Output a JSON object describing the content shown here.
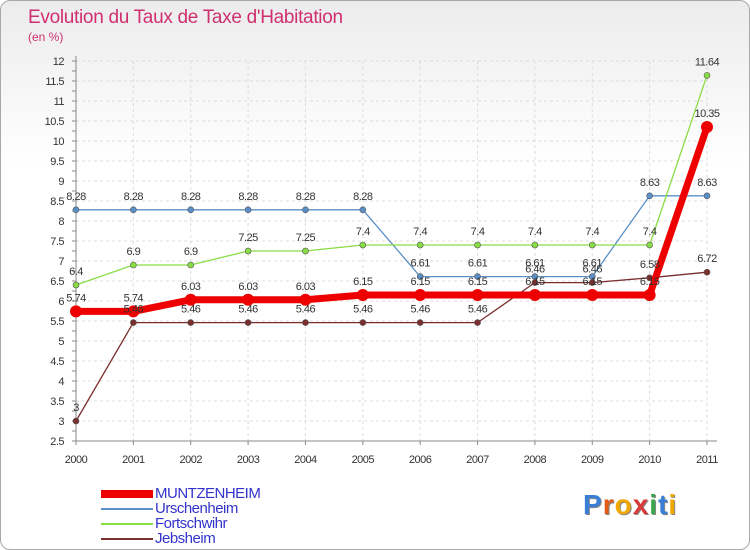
{
  "title": "Evolution du Taux de Taxe d'Habitation",
  "unit": "(en %)",
  "logo": "Proxiti",
  "chart_data": {
    "type": "line",
    "title": "Evolution du Taux de Taxe d'Habitation",
    "ylabel": "(en %)",
    "xlabel": "",
    "ylim": [
      2.5,
      12
    ],
    "y_ticks": [
      "2.5",
      "3",
      "3.5",
      "4",
      "4.5",
      "5",
      "5.5",
      "6",
      "6.5",
      "7",
      "7.5",
      "8",
      "8.5",
      "9",
      "9.5",
      "10",
      "10.5",
      "11",
      "11.5",
      "12"
    ],
    "categories": [
      "2000",
      "2001",
      "2002",
      "2003",
      "2004",
      "2005",
      "2006",
      "2007",
      "2008",
      "2009",
      "2010",
      "2011"
    ],
    "grid": true,
    "legend_position": "bottom-left",
    "series": [
      {
        "name": "MUNTZENHEIM",
        "color": "#ee0000",
        "width": 7,
        "marker": 6,
        "values": [
          5.74,
          5.74,
          6.03,
          6.03,
          6.03,
          6.15,
          6.15,
          6.15,
          6.15,
          6.15,
          6.15,
          10.35
        ],
        "labels": [
          "5.74",
          "5.74",
          "6.03",
          "6.03",
          "6.03",
          "6.15",
          "6.15",
          "6.15",
          "6.15",
          "6.15",
          "6.15",
          "10.35"
        ]
      },
      {
        "name": "Urschenheim",
        "color": "#5b8fc7",
        "width": 1.3,
        "marker": 3,
        "values": [
          8.28,
          8.28,
          8.28,
          8.28,
          8.28,
          8.28,
          6.61,
          6.61,
          6.61,
          6.61,
          8.63,
          8.63
        ],
        "labels": [
          "8.28",
          "8.28",
          "8.28",
          "8.28",
          "8.28",
          "8.28",
          "6.61",
          "6.61",
          "6.61",
          "6.61",
          "8.63",
          "8.63"
        ]
      },
      {
        "name": "Fortschwihr",
        "color": "#88dd44",
        "width": 1.3,
        "marker": 3,
        "values": [
          6.4,
          6.9,
          6.9,
          7.25,
          7.25,
          7.4,
          7.4,
          7.4,
          7.4,
          7.4,
          7.4,
          11.64
        ],
        "labels": [
          "6.4",
          "6.9",
          "6.9",
          "7.25",
          "7.25",
          "7.4",
          "7.4",
          "7.4",
          "7.4",
          "7.4",
          "7.4",
          "11.64"
        ]
      },
      {
        "name": "Jebsheim",
        "color": "#7a2e2e",
        "width": 1.3,
        "marker": 3,
        "values": [
          3,
          5.46,
          5.46,
          5.46,
          5.46,
          5.46,
          5.46,
          5.46,
          6.46,
          6.46,
          6.58,
          6.72
        ],
        "labels": [
          "3",
          "5.46",
          "5.46",
          "5.46",
          "5.46",
          "5.46",
          "5.46",
          "5.46",
          "6.46",
          "6.46",
          "6.58",
          "6.72"
        ]
      }
    ]
  }
}
